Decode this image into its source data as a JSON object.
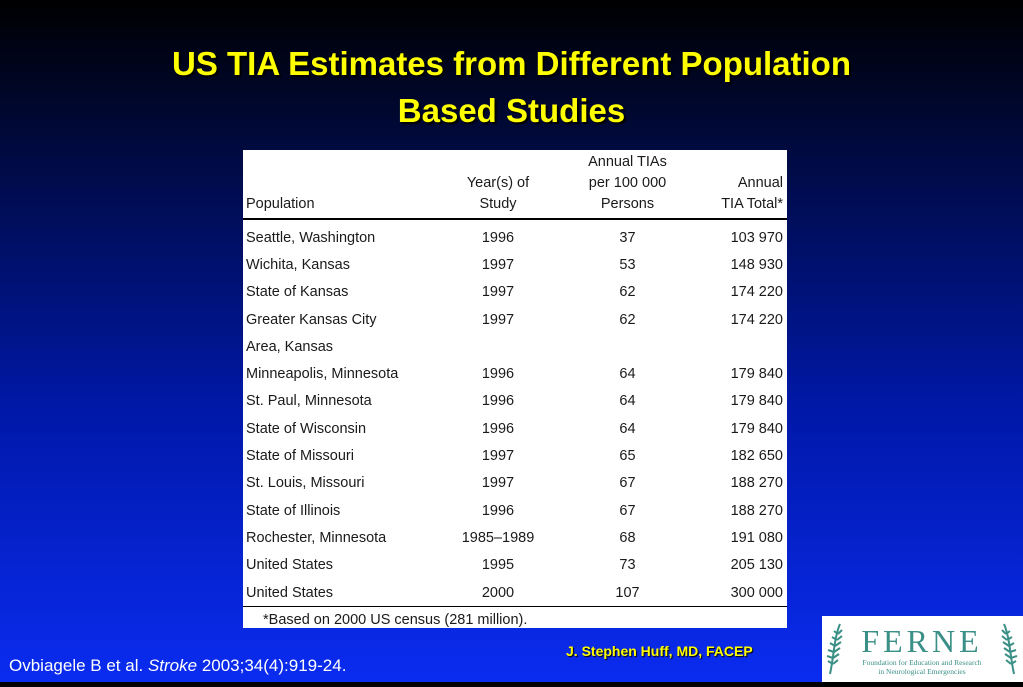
{
  "slide": {
    "title_line1": "US TIA Estimates from Different Population",
    "title_line2": "Based Studies"
  },
  "table": {
    "headers": {
      "population": "Population",
      "year_line1": "Year(s) of",
      "year_line2": "Study",
      "rate_line1": "Annual TIAs",
      "rate_line2": "per 100 000",
      "rate_line3": "Persons",
      "total_line1": "Annual",
      "total_line2": "TIA Total*"
    },
    "rows": [
      {
        "population": "Seattle, Washington",
        "year": "1996",
        "rate": "37",
        "total": "103 970"
      },
      {
        "population": "Wichita, Kansas",
        "year": "1997",
        "rate": "53",
        "total": "148 930"
      },
      {
        "population": "State of Kansas",
        "year": "1997",
        "rate": "62",
        "total": "174 220"
      },
      {
        "population": "Greater Kansas City",
        "year": "1997",
        "rate": "62",
        "total": "174 220"
      },
      {
        "population": "Area, Kansas",
        "year": "",
        "rate": "",
        "total": ""
      },
      {
        "population": "Minneapolis, Minnesota",
        "year": "1996",
        "rate": "64",
        "total": "179 840"
      },
      {
        "population": "St. Paul, Minnesota",
        "year": "1996",
        "rate": "64",
        "total": "179 840"
      },
      {
        "population": "State of Wisconsin",
        "year": "1996",
        "rate": "64",
        "total": "179 840"
      },
      {
        "population": "State of Missouri",
        "year": "1997",
        "rate": "65",
        "total": "182 650"
      },
      {
        "population": "St. Louis, Missouri",
        "year": "1997",
        "rate": "67",
        "total": "188 270"
      },
      {
        "population": "State of Illinois",
        "year": "1996",
        "rate": "67",
        "total": "188 270"
      },
      {
        "population": "Rochester, Minnesota",
        "year": "1985–1989",
        "rate": "68",
        "total": "191 080"
      },
      {
        "population": "United States",
        "year": "1995",
        "rate": "73",
        "total": "205 130"
      },
      {
        "population": "United States",
        "year": "2000",
        "rate": "107",
        "total": "300 000"
      }
    ],
    "footnote": "*Based on 2000 US census (281 million)."
  },
  "citation": {
    "authors": "Ovbiagele B et al.",
    "journal": "Stroke",
    "details": "2003;34(4):919-24."
  },
  "author": "J. Stephen Huff, MD, FACEP",
  "logo": {
    "name": "FERNE",
    "tagline_line1": "Foundation for Education and Research",
    "tagline_line2": "in Neurological Emergencies",
    "color": "#3a8f86"
  }
}
